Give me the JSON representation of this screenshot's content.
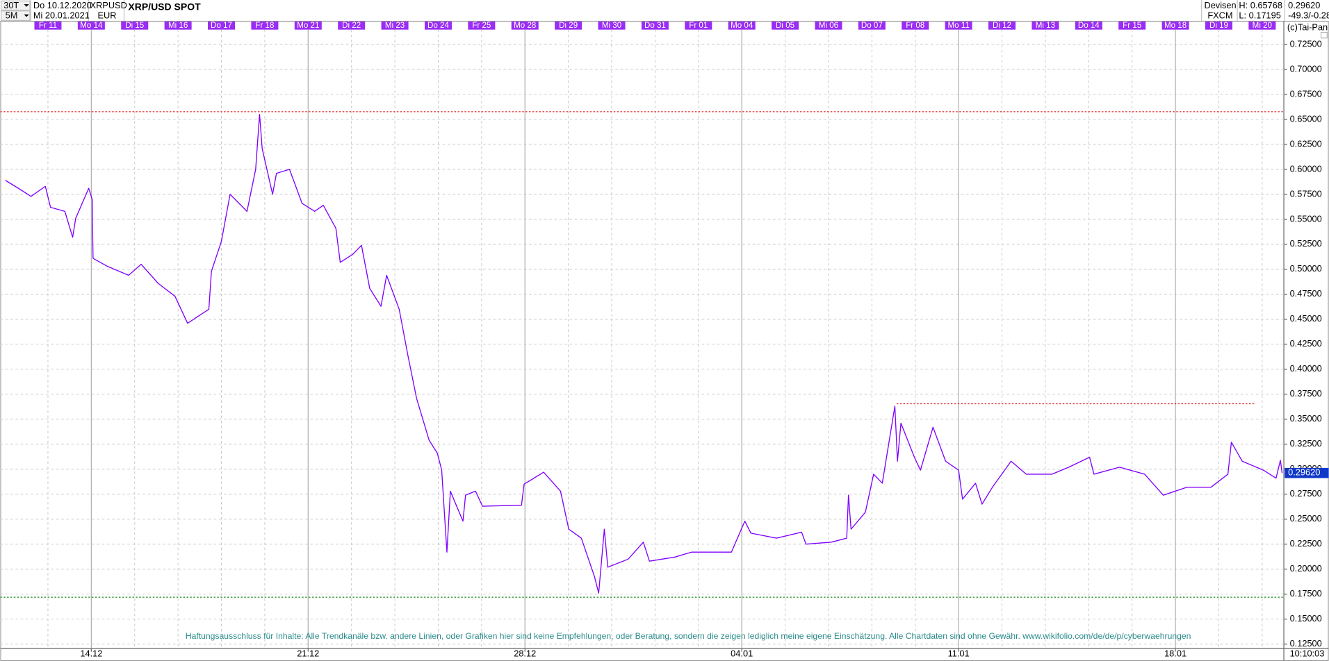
{
  "header": {
    "interval": "30T",
    "resolution": "5M",
    "date_from": "Do 10.12.2020",
    "date_to": "Mi 20.01.2021",
    "symbol": "XRPUSD",
    "currency": "EUR",
    "title": "XRP/USD SPOT",
    "category": "Devisen",
    "source": "FXCM",
    "high": "H: 0.65768",
    "low": "L: 0.17195",
    "change": "-49.3/-0.28",
    "copyright": "(c)Tai-Pan",
    "time": "10:10:03"
  },
  "chart_data": {
    "type": "line",
    "color": "#7f00ff",
    "grid": true,
    "xlim": [
      -1.1,
      28.5
    ],
    "ylim": [
      0.1208,
      0.7398
    ],
    "xticks": [
      {
        "value": 0,
        "label": "Fr 11"
      },
      {
        "value": 1,
        "label": "Mo 14"
      },
      {
        "value": 2,
        "label": "Di 15"
      },
      {
        "value": 3,
        "label": "Mi 16"
      },
      {
        "value": 4,
        "label": "Do 17"
      },
      {
        "value": 5,
        "label": "Fr 18"
      },
      {
        "value": 6,
        "label": "Mo 21"
      },
      {
        "value": 7,
        "label": "Di 22"
      },
      {
        "value": 8,
        "label": "Mi 23"
      },
      {
        "value": 9,
        "label": "Do 24"
      },
      {
        "value": 10,
        "label": "Fr 25"
      },
      {
        "value": 11,
        "label": "Mo 28"
      },
      {
        "value": 12,
        "label": "Di 29"
      },
      {
        "value": 13,
        "label": "Mi 30"
      },
      {
        "value": 14,
        "label": "Do 31"
      },
      {
        "value": 15,
        "label": "Fr 01"
      },
      {
        "value": 16,
        "label": "Mo 04"
      },
      {
        "value": 17,
        "label": "Di 05"
      },
      {
        "value": 18,
        "label": "Mi 06"
      },
      {
        "value": 19,
        "label": "Do 07"
      },
      {
        "value": 20,
        "label": "Fr 08"
      },
      {
        "value": 21,
        "label": "Mo 11"
      },
      {
        "value": 22,
        "label": "Di 12"
      },
      {
        "value": 23,
        "label": "Mi 13"
      },
      {
        "value": 24,
        "label": "Do 14"
      },
      {
        "value": 25,
        "label": "Fr 15"
      },
      {
        "value": 26,
        "label": "Mo 18"
      },
      {
        "value": 27,
        "label": "Di 19"
      },
      {
        "value": 28,
        "label": "Mi 20"
      }
    ],
    "week_ticks": [
      {
        "value": 1,
        "label": "14.12"
      },
      {
        "value": 6,
        "label": "21.12"
      },
      {
        "value": 11,
        "label": "28.12"
      },
      {
        "value": 16,
        "label": "04.01"
      },
      {
        "value": 21,
        "label": "11.01"
      },
      {
        "value": 26,
        "label": "18.01"
      }
    ],
    "yticks": [
      {
        "value": 0.125,
        "label": "0.12500"
      },
      {
        "value": 0.15,
        "label": "0.15000"
      },
      {
        "value": 0.175,
        "label": "0.17500"
      },
      {
        "value": 0.2,
        "label": "0.20000"
      },
      {
        "value": 0.225,
        "label": "0.22500"
      },
      {
        "value": 0.25,
        "label": "0.25000"
      },
      {
        "value": 0.275,
        "label": "0.27500"
      },
      {
        "value": 0.3,
        "label": "0.30000"
      },
      {
        "value": 0.325,
        "label": "0.32500"
      },
      {
        "value": 0.35,
        "label": "0.35000"
      },
      {
        "value": 0.375,
        "label": "0.37500"
      },
      {
        "value": 0.4,
        "label": "0.40000"
      },
      {
        "value": 0.425,
        "label": "0.42500"
      },
      {
        "value": 0.45,
        "label": "0.45000"
      },
      {
        "value": 0.475,
        "label": "0.47500"
      },
      {
        "value": 0.5,
        "label": "0.50000"
      },
      {
        "value": 0.525,
        "label": "0.52500"
      },
      {
        "value": 0.55,
        "label": "0.55000"
      },
      {
        "value": 0.575,
        "label": "0.57500"
      },
      {
        "value": 0.6,
        "label": "0.60000"
      },
      {
        "value": 0.625,
        "label": "0.62500"
      },
      {
        "value": 0.65,
        "label": "0.65000"
      },
      {
        "value": 0.675,
        "label": "0.67500"
      },
      {
        "value": 0.7,
        "label": "0.70000"
      },
      {
        "value": 0.725,
        "label": "0.72500"
      }
    ],
    "x": [
      -0.98,
      -0.68,
      -0.39,
      -0.06,
      0.06,
      0.39,
      0.57,
      0.64,
      0.94,
      1.02,
      1.04,
      1.37,
      1.86,
      2.15,
      2.54,
      2.93,
      3.22,
      3.57,
      3.71,
      3.77,
      4.0,
      4.2,
      4.59,
      4.79,
      4.88,
      4.94,
      5.18,
      5.27,
      5.57,
      5.86,
      6.15,
      6.35,
      6.64,
      6.74,
      7.03,
      7.23,
      7.42,
      7.68,
      7.81,
      8.1,
      8.3,
      8.5,
      8.79,
      8.98,
      9.08,
      9.2,
      9.28,
      9.57,
      9.63,
      9.86,
      10.02,
      10.92,
      10.98,
      11.43,
      11.82,
      12.01,
      12.3,
      12.6,
      12.7,
      12.83,
      12.91,
      13.38,
      13.73,
      13.87,
      14.45,
      14.84,
      15.76,
      16.07,
      16.21,
      16.8,
      17.38,
      17.48,
      18.07,
      18.42,
      18.46,
      18.52,
      18.85,
      19.04,
      19.24,
      19.53,
      19.59,
      19.67,
      19.98,
      20.12,
      20.41,
      20.7,
      21.0,
      21.09,
      21.39,
      21.54,
      21.78,
      22.21,
      22.56,
      23.15,
      23.54,
      24.02,
      24.12,
      24.71,
      25.29,
      25.72,
      26.27,
      26.82,
      27.21,
      27.29,
      27.54,
      28.03,
      28.32,
      28.42,
      28.46
    ],
    "values": [
      0.589,
      0.581,
      0.573,
      0.583,
      0.562,
      0.558,
      0.532,
      0.551,
      0.581,
      0.57,
      0.511,
      0.503,
      0.494,
      0.505,
      0.486,
      0.473,
      0.446,
      0.456,
      0.46,
      0.498,
      0.528,
      0.575,
      0.558,
      0.6,
      0.655,
      0.621,
      0.575,
      0.596,
      0.6,
      0.566,
      0.558,
      0.564,
      0.541,
      0.507,
      0.515,
      0.524,
      0.481,
      0.463,
      0.494,
      0.46,
      0.414,
      0.371,
      0.329,
      0.316,
      0.299,
      0.217,
      0.278,
      0.248,
      0.274,
      0.278,
      0.263,
      0.264,
      0.285,
      0.297,
      0.278,
      0.24,
      0.231,
      0.193,
      0.176,
      0.24,
      0.202,
      0.21,
      0.227,
      0.208,
      0.212,
      0.217,
      0.217,
      0.248,
      0.236,
      0.231,
      0.237,
      0.225,
      0.227,
      0.231,
      0.274,
      0.24,
      0.257,
      0.295,
      0.286,
      0.363,
      0.308,
      0.346,
      0.312,
      0.299,
      0.342,
      0.308,
      0.299,
      0.27,
      0.286,
      0.265,
      0.282,
      0.308,
      0.295,
      0.295,
      0.302,
      0.312,
      0.295,
      0.302,
      0.295,
      0.274,
      0.282,
      0.282,
      0.295,
      0.327,
      0.308,
      0.299,
      0.291,
      0.309,
      0.296
    ],
    "hlines": [
      {
        "value": 0.65768,
        "color": "#e02020"
      },
      {
        "value": 0.3655,
        "color": "#e02020",
        "x": [
          19.57,
          27.83
        ]
      },
      {
        "value": 0.17195,
        "color": "#1a8a1a"
      }
    ],
    "last_price": {
      "value": 0.2962,
      "label": "0.29620",
      "color": "#1038c8"
    },
    "annotation": "Haftungsausschluss für Inhalte: Alle Trendkanäle bzw. andere Linien, oder Grafiken hier sind keine Empfehlungen, oder Beratung, sondern die zeigen lediglich meine eigene Einschätzung. Alle Chartdaten sind ohne Gewähr. www.wikifolio.com/de/de/p/cyberwaehrungen"
  }
}
